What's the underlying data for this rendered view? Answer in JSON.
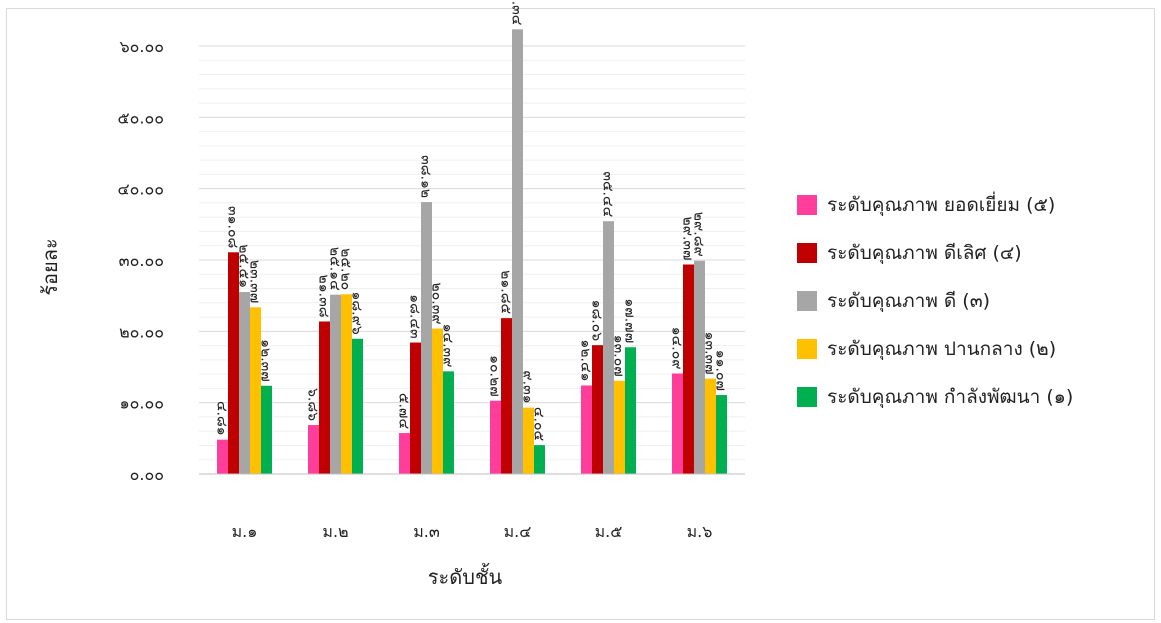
{
  "chart_data": {
    "type": "bar",
    "title": "",
    "xlabel": "ระดับชั้น",
    "ylabel": "ร้อยละ",
    "ylim": [
      0,
      60
    ],
    "yticks": [
      "๐.๐๐",
      "๑๐.๐๐",
      "๒๐.๐๐",
      "๓๐.๐๐",
      "๔๐.๐๐",
      "๕๐.๐๐",
      "๖๐.๐๐"
    ],
    "grid": true,
    "legend_position": "right",
    "categories": [
      "ม.๑",
      "ม.๒",
      "ม.๓",
      "ม.๔",
      "ม.๕",
      "ม.๖"
    ],
    "series": [
      {
        "name": "ระดับคุณภาพ ยอดเยี่ยม (๕)",
        "color": "#ff3d9a",
        "values": [
          4.81,
          6.86,
          5.74,
          10.27,
          12.41,
          14.09
        ],
        "labels": [
          "๔.๘๑",
          "๖.๘๖",
          "๕.๗๔",
          "๑๐.๒๗",
          "๑๒.๔๑",
          "๑๔.๐๙"
        ]
      },
      {
        "name": "ระดับคุณภาพ ดีเลิศ (๔)",
        "color": "#c00000",
        "values": [
          31.08,
          21.38,
          18.43,
          21.85,
          18.06,
          29.37
        ],
        "labels": [
          "๓๑.๐๘",
          "๒๑.๓๘",
          "๑๘.๔๓",
          "๒๑.๘๕",
          "๑๘.๐๖",
          "๒๙.๓๗"
        ]
      },
      {
        "name": "ระดับคุณภาพ ดี (๓)",
        "color": "#a6a6a6",
        "values": [
          25.51,
          25.14,
          38.12,
          62.34,
          35.44,
          29.89
        ],
        "labels": [
          "๒๕.๕๑",
          "๒๕.๑๔",
          "๓๘.๑๒",
          "๖๒.๓๔",
          "๓๕.๔๔",
          "๒๙.๘๙"
        ]
      },
      {
        "name": "ระดับคุณภาพ ปานกลาง (๒)",
        "color": "#ffc000",
        "values": [
          23.37,
          25.2,
          20.39,
          9.31,
          13.07,
          13.37
        ],
        "labels": [
          "๒๓.๓๗",
          "๒๕.๒๐",
          "๒๐.๓๙",
          "๙.๓๑",
          "๑๓.๐๗",
          "๑๓.๓๗"
        ]
      },
      {
        "name": "ระดับคุณภาพ กำลังพัฒนา (๑)",
        "color": "#00b050",
        "values": [
          12.37,
          18.96,
          14.39,
          4.05,
          17.77,
          11.07
        ],
        "labels": [
          "๑๒.๓๗",
          "๑๘.๙๖",
          "๑๔.๓๙",
          "๔.๐๕",
          "๑๗.๗๗",
          "๑๑.๐๗"
        ]
      }
    ]
  }
}
